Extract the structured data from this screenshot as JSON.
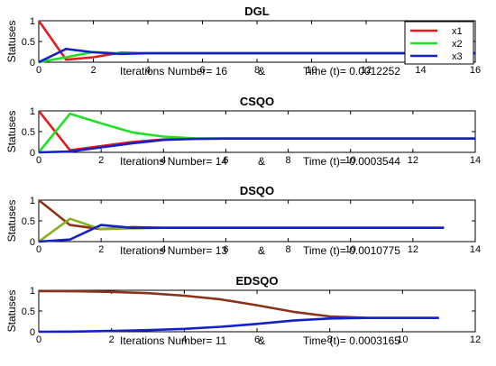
{
  "chart_data": [
    {
      "type": "line",
      "title": "DGL",
      "ylabel": "Statuses",
      "xlim": [
        0,
        16
      ],
      "ylim": [
        0,
        1
      ],
      "xticks": [
        0,
        2,
        4,
        6,
        8,
        10,
        12,
        14,
        16
      ],
      "yticks": [
        0,
        0.5,
        1
      ],
      "ytick_labels": [
        "0",
        "0.5",
        "1"
      ],
      "iterations_text": "Iterations Number= 16",
      "amp": "&",
      "time_text": "Time (t)=  0.0012252",
      "legend": {
        "placement": "top-right",
        "entries": [
          "x1",
          "x2",
          "x3"
        ]
      },
      "series": [
        {
          "name": "x1",
          "color": "#e8191c",
          "x": [
            0,
            1,
            2,
            3,
            4,
            5,
            6,
            7,
            8,
            9,
            10,
            11,
            12,
            13,
            14,
            15,
            16
          ],
          "y": [
            1,
            0.06,
            0.12,
            0.23,
            0.215,
            0.215,
            0.215,
            0.215,
            0.215,
            0.215,
            0.215,
            0.215,
            0.215,
            0.215,
            0.215,
            0.215,
            0.215
          ]
        },
        {
          "name": "x2",
          "color": "#1ee024",
          "x": [
            0,
            1,
            2,
            3,
            4,
            5,
            6,
            7,
            8,
            9,
            10,
            11,
            12,
            13,
            14,
            15,
            16
          ],
          "y": [
            0,
            0.12,
            0.245,
            0.21,
            0.215,
            0.215,
            0.215,
            0.215,
            0.215,
            0.215,
            0.215,
            0.215,
            0.215,
            0.215,
            0.215,
            0.215,
            0.215
          ]
        },
        {
          "name": "x3",
          "color": "#1521c8",
          "x": [
            0,
            1,
            2,
            3,
            4,
            5,
            6,
            7,
            8,
            9,
            10,
            11,
            12,
            13,
            14,
            15,
            16
          ],
          "y": [
            0,
            0.32,
            0.24,
            0.2,
            0.215,
            0.215,
            0.215,
            0.215,
            0.215,
            0.215,
            0.215,
            0.215,
            0.215,
            0.215,
            0.215,
            0.215,
            0.215
          ]
        }
      ]
    },
    {
      "type": "line",
      "title": "CSQO",
      "ylabel": "Statuses",
      "xlim": [
        0,
        14
      ],
      "ylim": [
        0,
        1
      ],
      "xticks": [
        0,
        2,
        4,
        6,
        8,
        10,
        12,
        14
      ],
      "yticks": [
        0,
        0.5,
        1
      ],
      "ytick_labels": [
        "0",
        "0.5",
        "1"
      ],
      "iterations_text": "Iterations Number= 14",
      "amp": "&",
      "time_text": "Time (t)=  0.0003544",
      "series": [
        {
          "name": "x1",
          "color": "#e8191c",
          "x": [
            0,
            1,
            2,
            3,
            4,
            5,
            6,
            7,
            8,
            9,
            10,
            11,
            12,
            13,
            14
          ],
          "y": [
            1,
            0.05,
            0.15,
            0.25,
            0.31,
            0.33,
            0.333,
            0.333,
            0.333,
            0.333,
            0.333,
            0.333,
            0.333,
            0.333,
            0.333
          ]
        },
        {
          "name": "x2",
          "color": "#1ee024",
          "x": [
            0,
            1,
            2,
            3,
            4,
            5,
            6,
            7,
            8,
            9,
            10,
            11,
            12,
            13,
            14
          ],
          "y": [
            0,
            0.93,
            0.7,
            0.48,
            0.38,
            0.34,
            0.333,
            0.333,
            0.333,
            0.333,
            0.333,
            0.333,
            0.333,
            0.333,
            0.333
          ]
        },
        {
          "name": "x3",
          "color": "#1521c8",
          "x": [
            0,
            1,
            2,
            3,
            4,
            5,
            6,
            7,
            8,
            9,
            10,
            11,
            12,
            13,
            14
          ],
          "y": [
            0,
            0.02,
            0.12,
            0.22,
            0.3,
            0.325,
            0.333,
            0.333,
            0.333,
            0.333,
            0.333,
            0.333,
            0.333,
            0.333,
            0.333
          ]
        }
      ]
    },
    {
      "type": "line",
      "title": "DSQO",
      "ylabel": "Statuses",
      "xlim": [
        0,
        14
      ],
      "ylim": [
        0,
        1
      ],
      "xticks": [
        0,
        2,
        4,
        6,
        8,
        10,
        12,
        14
      ],
      "yticks": [
        0,
        0.5,
        1
      ],
      "ytick_labels": [
        "0",
        "0.5",
        "1"
      ],
      "iterations_text": "Iterations Number= 13",
      "amp": "&",
      "time_text": "Time (t)=  0.0010775",
      "series": [
        {
          "name": "x1",
          "color": "#8c3218",
          "x": [
            0,
            1,
            2,
            3,
            4,
            5,
            6,
            7,
            8,
            9,
            10,
            11,
            12,
            13
          ],
          "y": [
            1,
            0.4,
            0.3,
            0.35,
            0.333,
            0.333,
            0.333,
            0.333,
            0.333,
            0.333,
            0.333,
            0.333,
            0.333,
            0.333
          ]
        },
        {
          "name": "x2",
          "color": "#88b020",
          "x": [
            0,
            1,
            2,
            3,
            4,
            5,
            6,
            7,
            8,
            9,
            10,
            11,
            12,
            13
          ],
          "y": [
            0,
            0.55,
            0.3,
            0.32,
            0.333,
            0.333,
            0.333,
            0.333,
            0.333,
            0.333,
            0.333,
            0.333,
            0.333,
            0.333
          ]
        },
        {
          "name": "x3",
          "color": "#1521c8",
          "x": [
            0,
            1,
            2,
            3,
            4,
            5,
            6,
            7,
            8,
            9,
            10,
            11,
            12,
            13
          ],
          "y": [
            0,
            0.05,
            0.4,
            0.33,
            0.333,
            0.333,
            0.333,
            0.333,
            0.333,
            0.333,
            0.333,
            0.333,
            0.333,
            0.333
          ]
        }
      ]
    },
    {
      "type": "line",
      "title": "EDSQO",
      "ylabel": "Statuses",
      "xlim": [
        0,
        12
      ],
      "ylim": [
        0,
        1
      ],
      "xticks": [
        0,
        2,
        4,
        6,
        8,
        10,
        12
      ],
      "yticks": [
        0,
        0.5,
        1
      ],
      "ytick_labels": [
        "0",
        "0.5",
        "1"
      ],
      "iterations_text": "Iterations Number= 11",
      "amp": "&",
      "time_text": "Time (t)=  0.0003165",
      "series": [
        {
          "name": "x1",
          "color": "#8c3218",
          "x": [
            0,
            1,
            2,
            3,
            4,
            5,
            6,
            7,
            8,
            9,
            10,
            11
          ],
          "y": [
            0.98,
            0.975,
            0.96,
            0.93,
            0.87,
            0.78,
            0.64,
            0.48,
            0.37,
            0.335,
            0.333,
            0.333
          ]
        },
        {
          "name": "x3",
          "color": "#1521c8",
          "x": [
            0,
            1,
            2,
            3,
            4,
            5,
            6,
            7,
            8,
            9,
            10,
            11
          ],
          "y": [
            0,
            0.005,
            0.02,
            0.04,
            0.07,
            0.12,
            0.19,
            0.27,
            0.32,
            0.333,
            0.333,
            0.333
          ]
        }
      ]
    }
  ]
}
